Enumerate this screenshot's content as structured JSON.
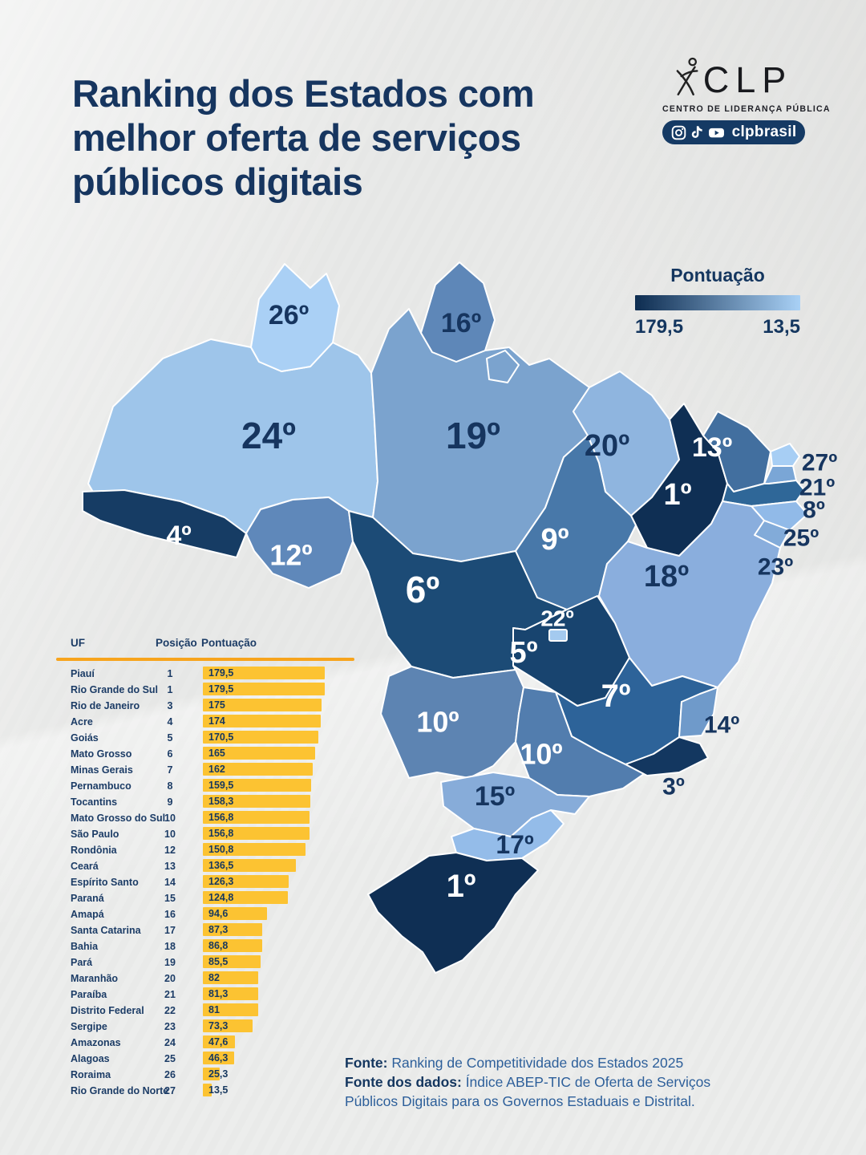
{
  "header": {
    "title_lines": [
      "Ranking dos Estados com",
      "melhor oferta de serviços",
      "públicos digitais"
    ],
    "logo": {
      "name": "CLP",
      "subtitle": "CENTRO DE LIDERANÇA PÚBLICA",
      "social_handle": "clpbrasil",
      "social_icons": [
        "instagram-icon",
        "tiktok-icon",
        "youtube-icon"
      ]
    }
  },
  "legend": {
    "title": "Pontuação",
    "max_label": "179,5",
    "min_label": "13,5",
    "color_dark": "#0d2c50",
    "color_light": "#a9d1f6"
  },
  "map": {
    "states": {
      "rr": {
        "name": "Roraima",
        "label": "26º",
        "color": "#aad0f5"
      },
      "ap": {
        "name": "Amapá",
        "label": "16º",
        "color": "#5e87b8"
      },
      "am": {
        "name": "Amazonas",
        "label": "24º",
        "color": "#9ec5ea"
      },
      "pa": {
        "name": "Pará",
        "label": "19º",
        "color": "#7ba3ce"
      },
      "ma": {
        "name": "Maranhão",
        "label": "20º",
        "color": "#8fb5df"
      },
      "pi": {
        "name": "Piauí",
        "label": "1º",
        "color": "#0f2f54"
      },
      "ce": {
        "name": "Ceará",
        "label": "13º",
        "color": "#426f9f"
      },
      "rn": {
        "name": "Rio Grande do Norte",
        "label": "27º",
        "color": "#a7cef4"
      },
      "pb": {
        "name": "Paraíba",
        "label": "21º",
        "color": "#7aa6d6"
      },
      "pe": {
        "name": "Pernambuco",
        "label": "8º",
        "color": "#2f6798"
      },
      "al": {
        "name": "Alagoas",
        "label": "25º",
        "color": "#91bae8"
      },
      "se": {
        "name": "Sergipe",
        "label": "23º",
        "color": "#82abd9"
      },
      "to": {
        "name": "Tocantins",
        "label": "9º",
        "color": "#4878a9"
      },
      "ba": {
        "name": "Bahia",
        "label": "18º",
        "color": "#8aaedd"
      },
      "ac": {
        "name": "Acre",
        "label": "4º",
        "color": "#163c64"
      },
      "ro": {
        "name": "Rondônia",
        "label": "12º",
        "color": "#5f88ba"
      },
      "mt": {
        "name": "Mato Grosso",
        "label": "6º",
        "color": "#1c4b76"
      },
      "go": {
        "name": "Goiás",
        "label": "5º",
        "color": "#18446f"
      },
      "df": {
        "name": "Distrito Federal",
        "label": "22º",
        "color": "#a4caef"
      },
      "mg": {
        "name": "Minas Gerais",
        "label": "7º",
        "color": "#2d6399"
      },
      "es": {
        "name": "Espírito Santo",
        "label": "14º",
        "color": "#6f9aca"
      },
      "rj": {
        "name": "Rio de Janeiro",
        "label": "3º",
        "color": "#133760"
      },
      "ms": {
        "name": "Mato Grosso do Sul",
        "label": "10º",
        "color": "#5d84b2"
      },
      "sp": {
        "name": "São Paulo",
        "label": "10º",
        "color": "#527dae"
      },
      "pr": {
        "name": "Paraná",
        "label": "15º",
        "color": "#87acd9"
      },
      "sc": {
        "name": "Santa Catarina",
        "label": "17º",
        "color": "#94bce9"
      },
      "rs": {
        "name": "Rio Grande do Sul",
        "label": "1º",
        "color": "#0f2f54"
      }
    }
  },
  "table": {
    "headers": {
      "uf": "UF",
      "position": "Posição",
      "score": "Pontuação"
    },
    "divider_color": "#f7a41d",
    "bar_color": "#fcc332",
    "max_value": 179.5,
    "rows": [
      {
        "name": "Piauí",
        "position": "1",
        "value_label": "179,5",
        "value": 179.5
      },
      {
        "name": "Rio Grande do Sul",
        "position": "1",
        "value_label": "179,5",
        "value": 179.5
      },
      {
        "name": "Rio de Janeiro",
        "position": "3",
        "value_label": "175",
        "value": 175
      },
      {
        "name": "Acre",
        "position": "4",
        "value_label": "174",
        "value": 174
      },
      {
        "name": "Goiás",
        "position": "5",
        "value_label": "170,5",
        "value": 170.5
      },
      {
        "name": "Mato Grosso",
        "position": "6",
        "value_label": "165",
        "value": 165
      },
      {
        "name": "Minas Gerais",
        "position": "7",
        "value_label": "162",
        "value": 162
      },
      {
        "name": "Pernambuco",
        "position": "8",
        "value_label": "159,5",
        "value": 159.5
      },
      {
        "name": "Tocantins",
        "position": "9",
        "value_label": "158,3",
        "value": 158.3
      },
      {
        "name": "Mato Grosso do Sul",
        "position": "10",
        "value_label": "156,8",
        "value": 156.8
      },
      {
        "name": "São Paulo",
        "position": "10",
        "value_label": "156,8",
        "value": 156.8
      },
      {
        "name": "Rondônia",
        "position": "12",
        "value_label": "150,8",
        "value": 150.8
      },
      {
        "name": "Ceará",
        "position": "13",
        "value_label": "136,5",
        "value": 136.5
      },
      {
        "name": "Espírito Santo",
        "position": "14",
        "value_label": "126,3",
        "value": 126.3
      },
      {
        "name": "Paraná",
        "position": "15",
        "value_label": "124,8",
        "value": 124.8
      },
      {
        "name": "Amapá",
        "position": "16",
        "value_label": "94,6",
        "value": 94.6
      },
      {
        "name": "Santa Catarina",
        "position": "17",
        "value_label": "87,3",
        "value": 87.3
      },
      {
        "name": "Bahia",
        "position": "18",
        "value_label": "86,8",
        "value": 86.8
      },
      {
        "name": "Pará",
        "position": "19",
        "value_label": "85,5",
        "value": 85.5
      },
      {
        "name": "Maranhão",
        "position": "20",
        "value_label": "82",
        "value": 82
      },
      {
        "name": "Paraíba",
        "position": "21",
        "value_label": "81,3",
        "value": 81.3
      },
      {
        "name": "Distrito Federal",
        "position": "22",
        "value_label": "81",
        "value": 81
      },
      {
        "name": "Sergipe",
        "position": "23",
        "value_label": "73,3",
        "value": 73.3
      },
      {
        "name": "Amazonas",
        "position": "24",
        "value_label": "47,6",
        "value": 47.6
      },
      {
        "name": "Alagoas",
        "position": "25",
        "value_label": "46,3",
        "value": 46.3
      },
      {
        "name": "Roraima",
        "position": "26",
        "value_label": "25,3",
        "value": 25.3
      },
      {
        "name": "Rio Grande do Norte",
        "position": "27",
        "value_label": "13,5",
        "value": 13.5
      }
    ]
  },
  "chart_data": [
    {
      "type": "bar",
      "orientation": "horizontal",
      "title": "Ranking dos Estados com melhor oferta de serviços públicos digitais",
      "categories": [
        "Piauí",
        "Rio Grande do Sul",
        "Rio de Janeiro",
        "Acre",
        "Goiás",
        "Mato Grosso",
        "Minas Gerais",
        "Pernambuco",
        "Tocantins",
        "Mato Grosso do Sul",
        "São Paulo",
        "Rondônia",
        "Ceará",
        "Espírito Santo",
        "Paraná",
        "Amapá",
        "Santa Catarina",
        "Bahia",
        "Pará",
        "Maranhão",
        "Paraíba",
        "Distrito Federal",
        "Sergipe",
        "Amazonas",
        "Alagoas",
        "Roraima",
        "Rio Grande do Norte"
      ],
      "positions": [
        1,
        1,
        3,
        4,
        5,
        6,
        7,
        8,
        9,
        10,
        10,
        12,
        13,
        14,
        15,
        16,
        17,
        18,
        19,
        20,
        21,
        22,
        23,
        24,
        25,
        26,
        27
      ],
      "values": [
        179.5,
        179.5,
        175,
        174,
        170.5,
        165,
        162,
        159.5,
        158.3,
        156.8,
        156.8,
        150.8,
        136.5,
        126.3,
        124.8,
        94.6,
        87.3,
        86.8,
        85.5,
        82,
        81.3,
        81,
        73.3,
        47.6,
        46.3,
        25.3,
        13.5
      ],
      "xlim": [
        0,
        179.5
      ],
      "bar_color": "#fcc332",
      "column_headers": [
        "UF",
        "Posição",
        "Pontuação"
      ]
    },
    {
      "type": "heatmap",
      "subtype": "choropleth-brazil-states",
      "legend": {
        "title": "Pontuação",
        "max": 179.5,
        "min": 13.5,
        "max_label": "179,5",
        "min_label": "13,5",
        "color_high": "#0d2c50",
        "color_low": "#a9d1f6"
      },
      "states": [
        {
          "uf": "RR",
          "rank_label": "26º",
          "score": 25.3
        },
        {
          "uf": "AP",
          "rank_label": "16º",
          "score": 94.6
        },
        {
          "uf": "AM",
          "rank_label": "24º",
          "score": 47.6
        },
        {
          "uf": "PA",
          "rank_label": "19º",
          "score": 85.5
        },
        {
          "uf": "MA",
          "rank_label": "20º",
          "score": 82
        },
        {
          "uf": "PI",
          "rank_label": "1º",
          "score": 179.5
        },
        {
          "uf": "CE",
          "rank_label": "13º",
          "score": 136.5
        },
        {
          "uf": "RN",
          "rank_label": "27º",
          "score": 13.5
        },
        {
          "uf": "PB",
          "rank_label": "21º",
          "score": 81.3
        },
        {
          "uf": "PE",
          "rank_label": "8º",
          "score": 159.5
        },
        {
          "uf": "AL",
          "rank_label": "25º",
          "score": 46.3
        },
        {
          "uf": "SE",
          "rank_label": "23º",
          "score": 73.3
        },
        {
          "uf": "TO",
          "rank_label": "9º",
          "score": 158.3
        },
        {
          "uf": "BA",
          "rank_label": "18º",
          "score": 86.8
        },
        {
          "uf": "AC",
          "rank_label": "4º",
          "score": 174
        },
        {
          "uf": "RO",
          "rank_label": "12º",
          "score": 150.8
        },
        {
          "uf": "MT",
          "rank_label": "6º",
          "score": 165
        },
        {
          "uf": "GO",
          "rank_label": "5º",
          "score": 170.5
        },
        {
          "uf": "DF",
          "rank_label": "22º",
          "score": 81
        },
        {
          "uf": "MG",
          "rank_label": "7º",
          "score": 162
        },
        {
          "uf": "ES",
          "rank_label": "14º",
          "score": 126.3
        },
        {
          "uf": "RJ",
          "rank_label": "3º",
          "score": 175
        },
        {
          "uf": "MS",
          "rank_label": "10º",
          "score": 156.8
        },
        {
          "uf": "SP",
          "rank_label": "10º",
          "score": 156.8
        },
        {
          "uf": "PR",
          "rank_label": "15º",
          "score": 124.8
        },
        {
          "uf": "SC",
          "rank_label": "17º",
          "score": 87.3
        },
        {
          "uf": "RS",
          "rank_label": "1º",
          "score": 179.5
        }
      ]
    }
  ],
  "footer": {
    "source_label": "Fonte:",
    "source_text": " Ranking de Competitividade dos Estados 2025",
    "data_source_label": "Fonte dos dados:",
    "data_source_text": " Índice ABEP-TIC de Oferta de Serviços Públicos Digitais para os Governos Estaduais e Distrital."
  }
}
